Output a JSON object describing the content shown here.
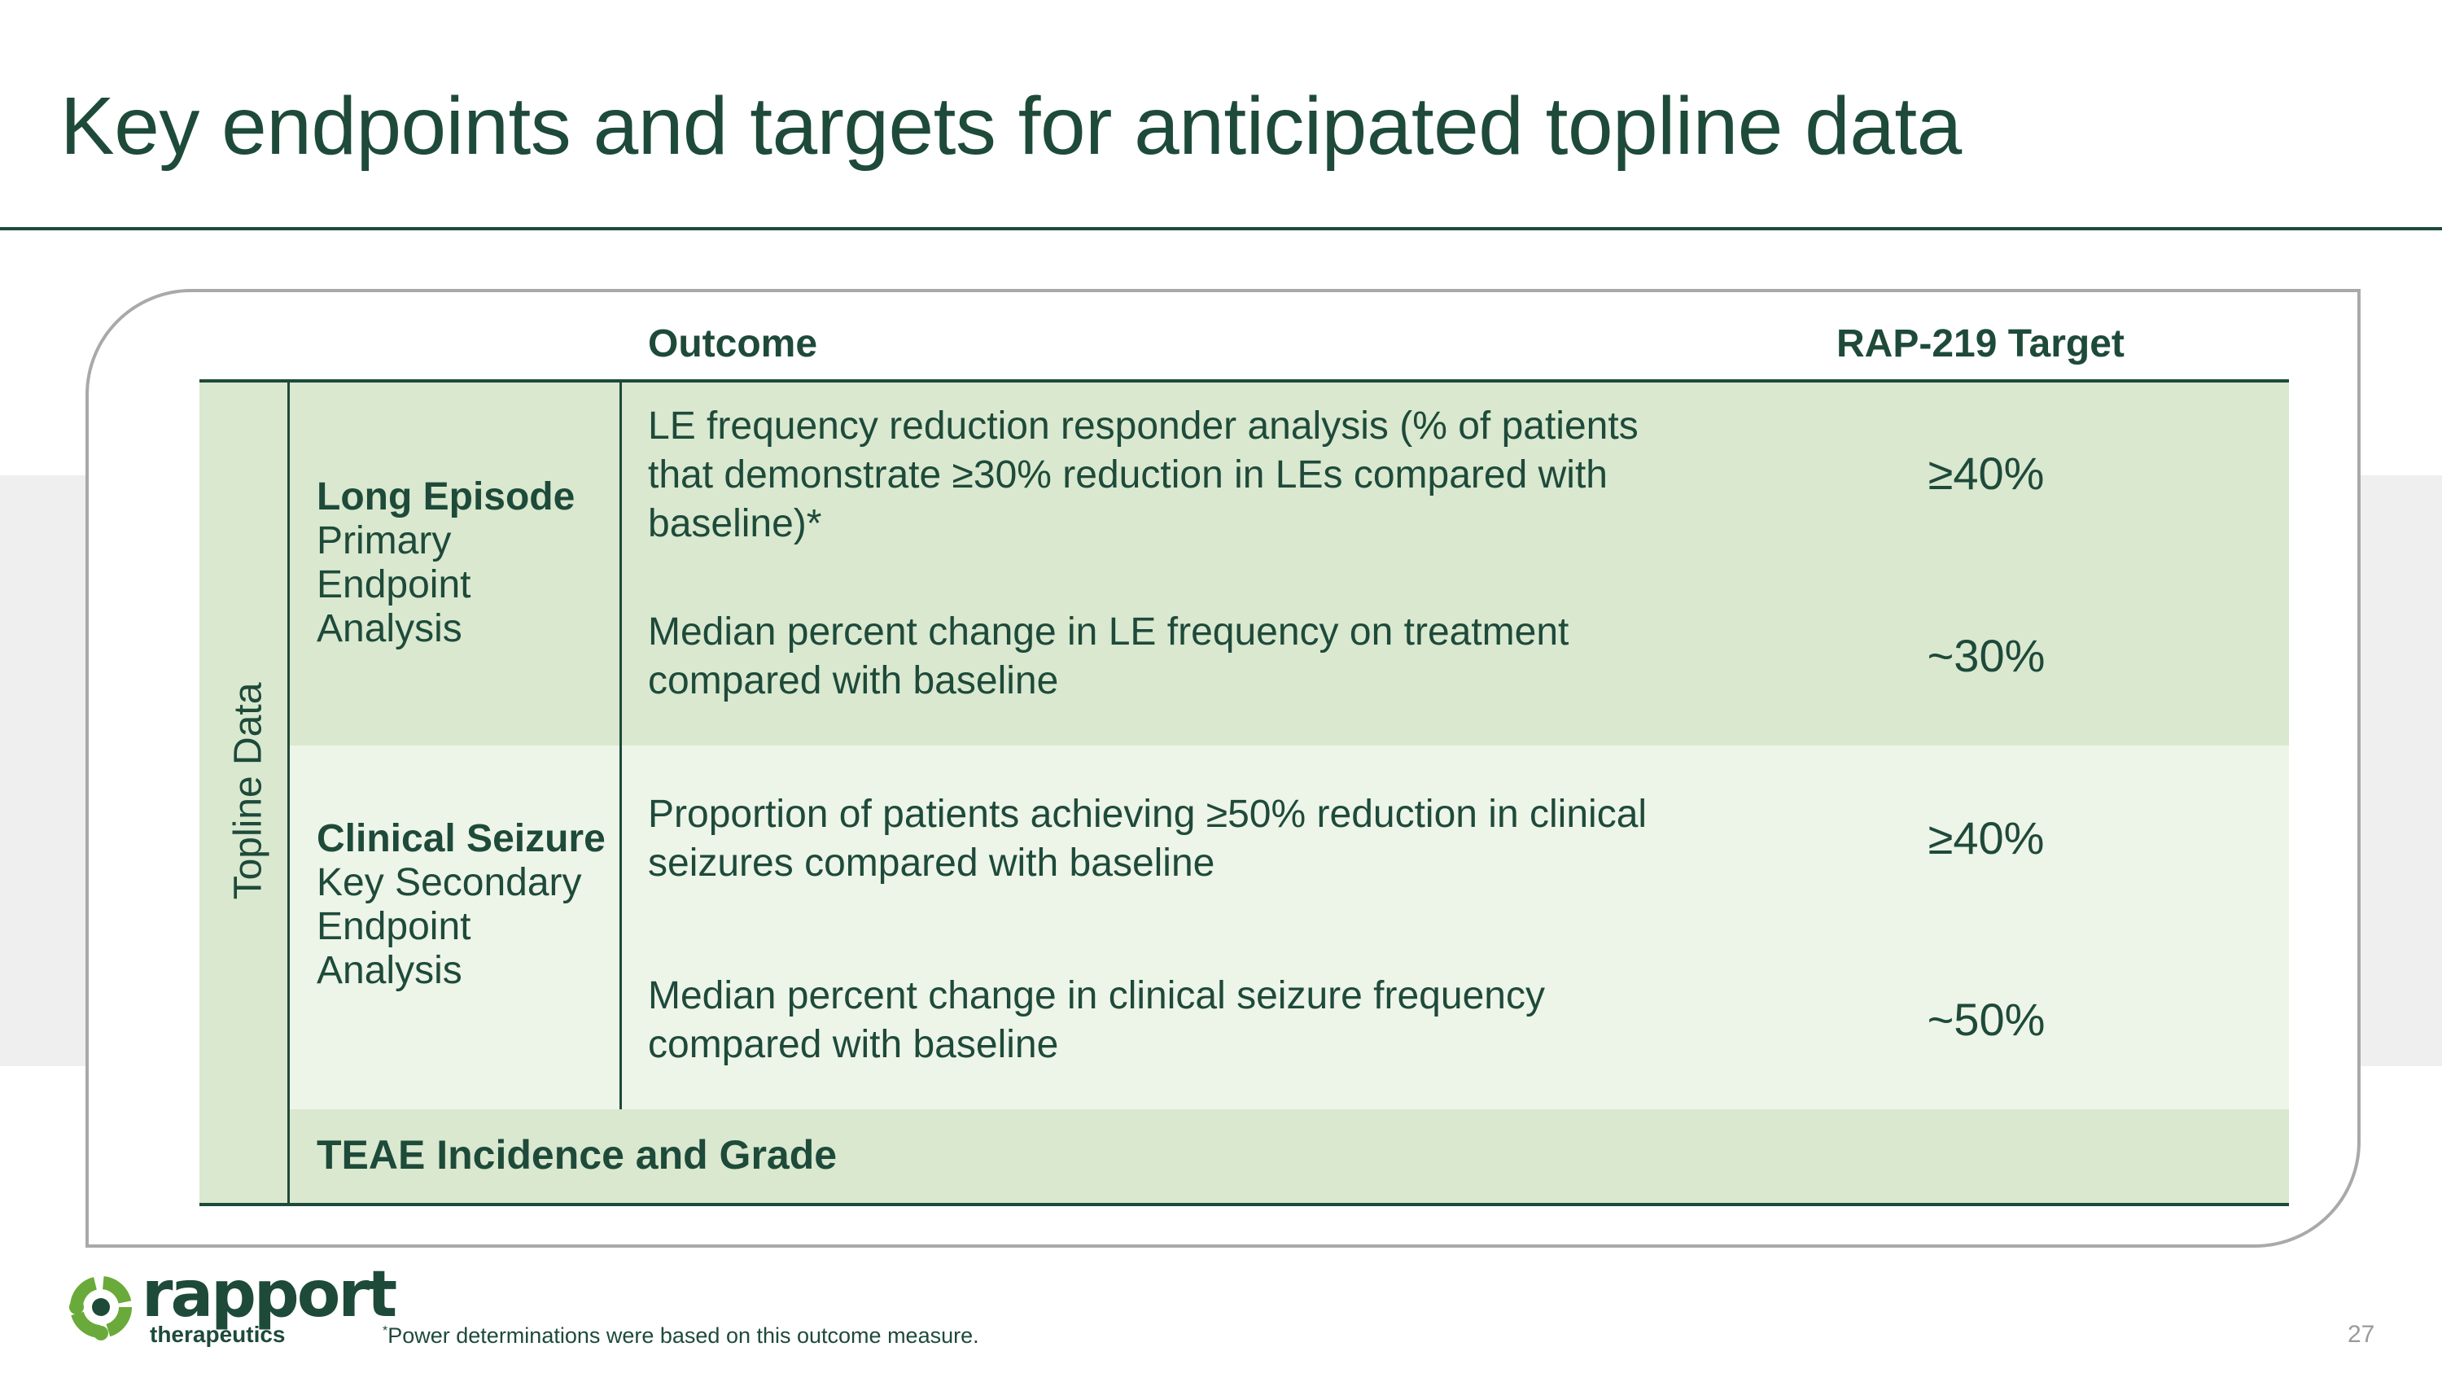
{
  "slide": {
    "title": "Key endpoints and targets for anticipated topline data",
    "page_number": "27"
  },
  "table": {
    "headers": {
      "outcome": "Outcome",
      "target": "RAP-219 Target"
    },
    "side_label": "Topline Data",
    "groups": [
      {
        "label_bold": "Long Episode",
        "label_rest": "Primary Endpoint Analysis",
        "rows": [
          {
            "outcome": "LE frequency reduction responder analysis (% of patients that demonstrate ≥30% reduction in LEs compared with baseline)*",
            "target": "≥40%"
          },
          {
            "outcome": "Median percent change in LE frequency on treatment compared with baseline",
            "target": "~30%"
          }
        ]
      },
      {
        "label_bold": "Clinical Seizure",
        "label_rest": "Key Secondary Endpoint Analysis",
        "rows": [
          {
            "outcome": "Proportion of patients achieving ≥50% reduction in clinical seizures compared with baseline",
            "target": "≥40%"
          },
          {
            "outcome": "Median percent change in clinical seizure frequency compared with baseline",
            "target": "~50%"
          }
        ]
      }
    ],
    "footer_row": "TEAE Incidence and Grade"
  },
  "footer": {
    "logo_name": "rapport",
    "logo_sub": "therapeutics",
    "footnote_mark": "*",
    "footnote": "Power determinations were based on this outcome measure."
  },
  "colors": {
    "primary": "#1e4a3a",
    "row_dark": "#d9e8cf",
    "row_light": "#edf4e8",
    "logo_green": "#6aaa3a"
  },
  "icons": {
    "logo": "rapport-logo-icon"
  }
}
